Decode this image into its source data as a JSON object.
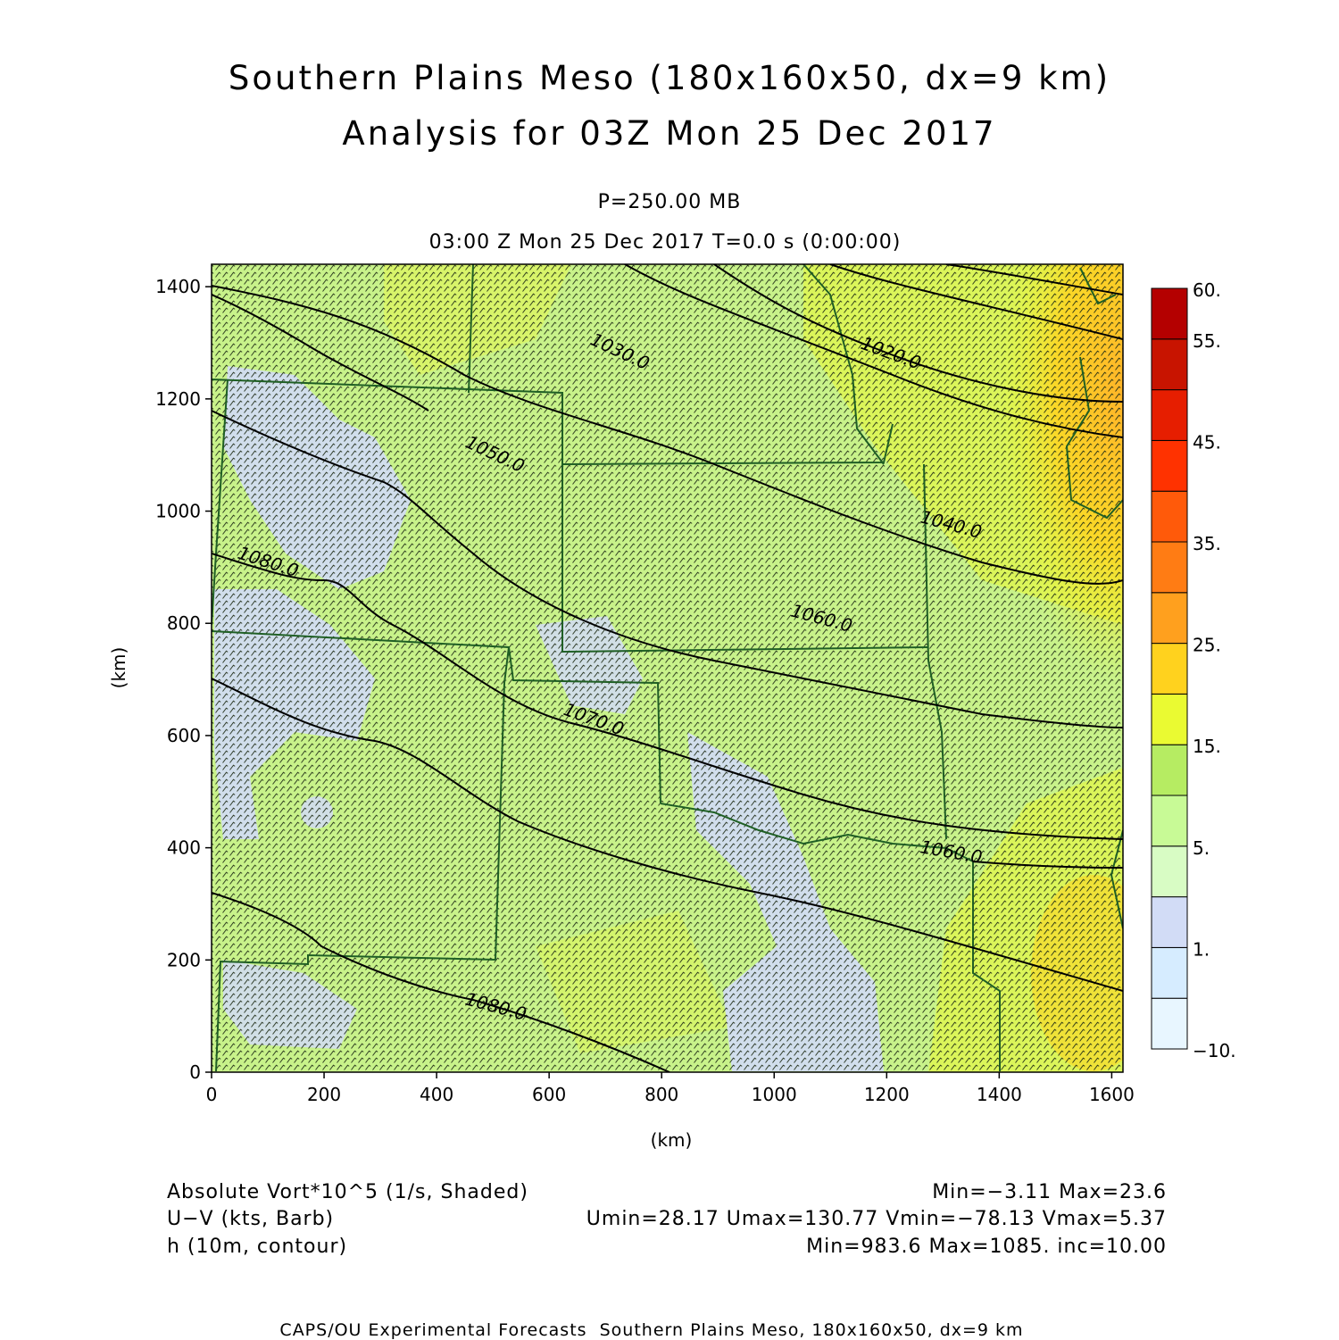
{
  "title": {
    "line1": "Southern Plains Meso (180x160x50, dx=9 km)",
    "line2": "Analysis for 03Z Mon 25 Dec 2017"
  },
  "subtitle": {
    "level": "P=250.00 MB",
    "time": "03:00 Z Mon 25 Dec 2017    T=0.0 s (0:00:00)"
  },
  "axes": {
    "xlabel": "(km)",
    "ylabel": "(km)",
    "xlim": [
      0,
      1620
    ],
    "ylim": [
      0,
      1440
    ],
    "xticks": [
      {
        "value": 0,
        "label": "0"
      },
      {
        "value": 200,
        "label": "200"
      },
      {
        "value": 400,
        "label": "400"
      },
      {
        "value": 600,
        "label": "600"
      },
      {
        "value": 800,
        "label": "800"
      },
      {
        "value": 1000,
        "label": "1000"
      },
      {
        "value": 1200,
        "label": "1200"
      },
      {
        "value": 1400,
        "label": "1400"
      },
      {
        "value": 1600,
        "label": "1600"
      }
    ],
    "yticks": [
      {
        "value": 0,
        "label": "0"
      },
      {
        "value": 200,
        "label": "200"
      },
      {
        "value": 400,
        "label": "400"
      },
      {
        "value": 600,
        "label": "600"
      },
      {
        "value": 800,
        "label": "800"
      },
      {
        "value": 1000,
        "label": "1000"
      },
      {
        "value": 1200,
        "label": "1200"
      },
      {
        "value": 1400,
        "label": "1400"
      }
    ]
  },
  "colorbar": {
    "levels": [
      -10,
      0,
      1,
      2,
      5,
      10,
      15,
      20,
      25,
      30,
      35,
      40,
      45,
      50,
      55,
      60
    ],
    "labeled": [
      {
        "level": 60,
        "label": "60."
      },
      {
        "level": 55,
        "label": "55."
      },
      {
        "level": 45,
        "label": "45."
      },
      {
        "level": 35,
        "label": "35."
      },
      {
        "level": 25,
        "label": "25."
      },
      {
        "level": 15,
        "label": "15."
      },
      {
        "level": 5,
        "label": "5."
      },
      {
        "level": 1,
        "label": "1."
      },
      {
        "level": -10,
        "label": "−10."
      }
    ],
    "colors": [
      "#e8f6ff",
      "#d6ecff",
      "#d2dcf6",
      "#d8fcc4",
      "#c8fa96",
      "#b6ec62",
      "#eafa32",
      "#ffd21e",
      "#ffa01e",
      "#ff7c14",
      "#ff5a0a",
      "#ff3200",
      "#e61e00",
      "#c81400",
      "#b40000"
    ]
  },
  "contour_labels": [
    "1020.0",
    "1030.0",
    "1040.0",
    "1050.0",
    "1060.0",
    "1070.0",
    "1080.0"
  ],
  "legend": {
    "field1": "Absolute Vort*10^5 (1/s, Shaded)",
    "field1_stats": "Min=−3.11 Max=23.6",
    "field2": "U−V (kts, Barb)",
    "field2_stats": "Umin=28.17 Umax=130.77 Vmin=−78.13 Vmax=5.37",
    "field3": "h (10m, contour)",
    "field3_stats": "Min=983.6 Max=1085. inc=10.00"
  },
  "footer": "CAPS/OU Experimental Forecasts  Southern Plains Meso, 180x160x50, dx=9 km"
}
